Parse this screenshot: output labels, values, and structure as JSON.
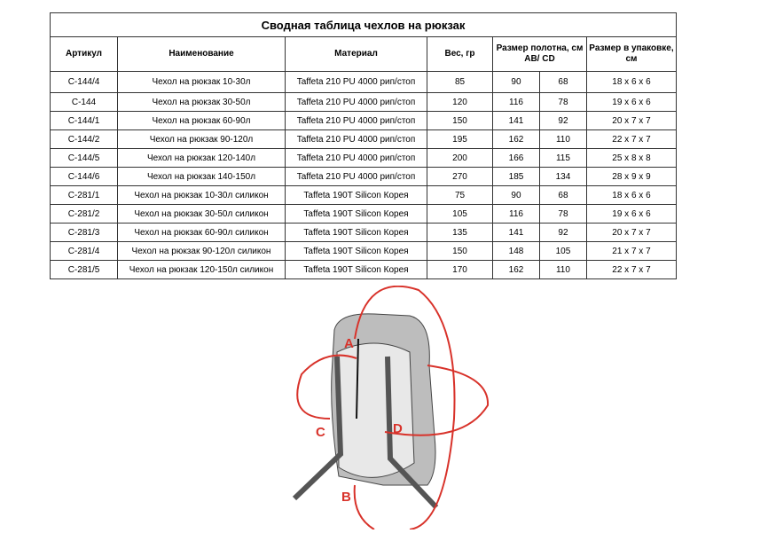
{
  "title": "Сводная таблица чехлов на рюкзак",
  "headers": [
    "Артикул",
    "Наименование",
    "Материал",
    "Вес, гр",
    "Размер полотна, см AB/ CD",
    "Размер в упаковке, см"
  ],
  "rows": [
    [
      "С-144/4",
      "Чехол на рюкзак 10-30л",
      "Taffeta 210 PU 4000 рип/стоп",
      "85",
      "90",
      "68",
      "18 x 6 x 6"
    ],
    [
      "С-144",
      "Чехол на рюкзак 30-50л",
      "Taffeta 210 PU 4000 рип/стоп",
      "120",
      "116",
      "78",
      "19 x 6 x 6"
    ],
    [
      "С-144/1",
      "Чехол на рюкзак 60-90л",
      "Taffeta 210 PU 4000 рип/стоп",
      "150",
      "141",
      "92",
      "20 x 7 x 7"
    ],
    [
      "С-144/2",
      "Чехол на рюкзак 90-120л",
      "Taffeta 210 PU 4000 рип/стоп",
      "195",
      "162",
      "110",
      "22 x 7 x 7"
    ],
    [
      "С-144/5",
      "Чехол на рюкзак 120-140л",
      "Taffeta 210 PU 4000 рип/стоп",
      "200",
      "166",
      "115",
      "25 x 8 x 8"
    ],
    [
      "С-144/6",
      "Чехол на рюкзак 140-150л",
      "Taffeta 210 PU 4000 рип/стоп",
      "270",
      "185",
      "134",
      "28 x 9 x 9"
    ],
    [
      "С-281/1",
      "Чехол на рюкзак 10-30л силикон",
      "Taffeta 190T Silicon Корея",
      "75",
      "90",
      "68",
      "18 x 6 x 6"
    ],
    [
      "С-281/2",
      "Чехол на рюкзак 30-50л силикон",
      "Taffeta 190T Silicon Корея",
      "105",
      "116",
      "78",
      "19 x 6 x 6"
    ],
    [
      "С-281/3",
      "Чехол на рюкзак 60-90л силикон",
      "Taffeta 190T Silicon Корея",
      "135",
      "141",
      "92",
      "20 x 7 x 7"
    ],
    [
      "С-281/4",
      "Чехол на рюкзак 90-120л силикон",
      "Taffeta 190T Silicon Корея",
      "150",
      "148",
      "105",
      "21 x 7 x 7"
    ],
    [
      "С-281/5",
      "Чехол на рюкзак 120-150л силикон",
      "Taffeta 190T Silicon Корея",
      "170",
      "162",
      "110",
      "22 x 7 x 7"
    ]
  ],
  "illustration": {
    "labels": {
      "a": "A",
      "b": "B",
      "c": "C",
      "d": "D"
    },
    "arrow_color": "#d8322a"
  }
}
